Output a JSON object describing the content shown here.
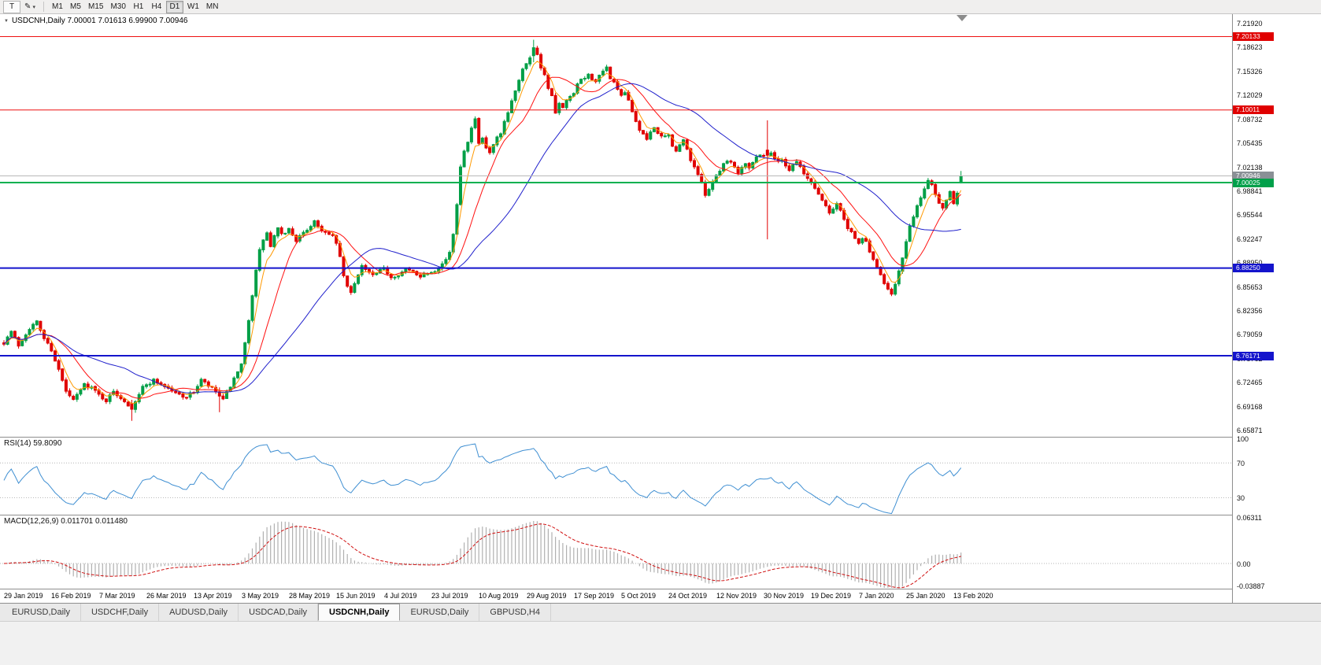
{
  "colors": {
    "up": "#009f46",
    "down": "#e00000",
    "ma_fast": "#ff9900",
    "ma_mid": "#ff1111",
    "ma_slow": "#2020cc",
    "rsi_line": "#3f8fd2",
    "macd_hist": "#b0b0b0",
    "macd_signal": "#d01010",
    "bid_line": "#b8b8b8",
    "level_dotted": "#b4b4b4"
  },
  "toolbar": {
    "t_button": "T",
    "drawing_tool_glyph": "✎",
    "drawing_button_caret": "▾",
    "timeframes": [
      "M1",
      "M5",
      "M15",
      "M30",
      "H1",
      "H4",
      "D1",
      "W1",
      "MN"
    ],
    "active_timeframe": "D1"
  },
  "chart": {
    "symbol": "USDCNH,Daily",
    "title_line": "USDCNH,Daily 7.00001 7.01613 6.99900 7.00946",
    "collapse_glyph": "▼"
  },
  "price_scale": {
    "ticks": [
      "7.21920",
      "7.18623",
      "7.15326",
      "7.12029",
      "7.08732",
      "7.05435",
      "7.02138",
      "6.98841",
      "6.95544",
      "6.92247",
      "6.88950",
      "6.85653",
      "6.82356",
      "6.79059",
      "6.75762",
      "6.72465",
      "6.69168",
      "6.65871"
    ]
  },
  "hlines": [
    {
      "label": "7.20133",
      "price": 7.20133,
      "color": "#ee1111",
      "tag": "#e00000",
      "width": 1
    },
    {
      "label": "7.10011",
      "price": 7.10011,
      "color": "#ee1111",
      "tag": "#e00000",
      "width": 1
    },
    {
      "label": "7.00946",
      "price": 7.00946,
      "color": "#b8b8b8",
      "tag": "#8a9096",
      "width": 1
    },
    {
      "label": "7.00025",
      "price": 7.00025,
      "color": "#00b050",
      "tag": "#00a04a",
      "width": 2
    },
    {
      "label": "6.88250",
      "price": 6.8825,
      "color": "#1414cc",
      "tag": "#1414cc",
      "width": 2
    },
    {
      "label": "6.76171",
      "price": 6.76171,
      "color": "#1414cc",
      "tag": "#1414cc",
      "width": 2
    }
  ],
  "rsi": {
    "display": "RSI(14) 59.8090",
    "levels": [
      70,
      30
    ],
    "scale_labels": [
      {
        "t": "100",
        "v": 100
      },
      {
        "t": "70",
        "v": 70
      },
      {
        "t": "30",
        "v": 30
      }
    ]
  },
  "macd": {
    "display": "MACD(12,26,9) 0.011701 0.011480",
    "scale_labels": [
      {
        "t": "0.06311",
        "v": 0.06311
      },
      {
        "t": "0.00",
        "v": 0
      },
      {
        "t": "-0.03887",
        "v": -0.03887
      }
    ]
  },
  "dates": [
    "29 Jan 2019",
    "16 Feb 2019",
    "7 Mar 2019",
    "26 Mar 2019",
    "13 Apr 2019",
    "3 May 2019",
    "28 May 2019",
    "15 Jun 2019",
    "4 Jul 2019",
    "23 Jul 2019",
    "10 Aug 2019",
    "29 Aug 2019",
    "17 Sep 2019",
    "5 Oct 2019",
    "24 Oct 2019",
    "12 Nov 2019",
    "30 Nov 2019",
    "19 Dec 2019",
    "7 Jan 2020",
    "25 Jan 2020",
    "13 Feb 2020"
  ],
  "tabs": [
    {
      "label": "EURUSD,Daily",
      "active": false
    },
    {
      "label": "USDCHF,Daily",
      "active": false
    },
    {
      "label": "AUDUSD,Daily",
      "active": false
    },
    {
      "label": "USDCAD,Daily",
      "active": false
    },
    {
      "label": "USDCNH,Daily",
      "active": true
    },
    {
      "label": "EURUSD,Daily",
      "active": false
    },
    {
      "label": "GBPUSD,H4",
      "active": false
    }
  ],
  "chart_data": {
    "type": "candlestick",
    "symbol": "USDCNH",
    "timeframe": "Daily",
    "bars": 263,
    "ylim": [
      6.652,
      7.232
    ],
    "x_labels_every_bars": 13,
    "close_anchors": [
      [
        0,
        6.78
      ],
      [
        2,
        6.795
      ],
      [
        4,
        6.776
      ],
      [
        7,
        6.8
      ],
      [
        9,
        6.808
      ],
      [
        11,
        6.786
      ],
      [
        13,
        6.77
      ],
      [
        15,
        6.742
      ],
      [
        17,
        6.712
      ],
      [
        19,
        6.7
      ],
      [
        22,
        6.722
      ],
      [
        24,
        6.718
      ],
      [
        26,
        6.708
      ],
      [
        28,
        6.7
      ],
      [
        30,
        6.712
      ],
      [
        33,
        6.7
      ],
      [
        35,
        6.688
      ],
      [
        36,
        6.7
      ],
      [
        38,
        6.718
      ],
      [
        41,
        6.728
      ],
      [
        44,
        6.72
      ],
      [
        47,
        6.71
      ],
      [
        50,
        6.705
      ],
      [
        52,
        6.712
      ],
      [
        54,
        6.728
      ],
      [
        56,
        6.72
      ],
      [
        58,
        6.712
      ],
      [
        60,
        6.7
      ],
      [
        62,
        6.72
      ],
      [
        64,
        6.738
      ],
      [
        65,
        6.748
      ],
      [
        66,
        6.778
      ],
      [
        67,
        6.812
      ],
      [
        68,
        6.846
      ],
      [
        69,
        6.878
      ],
      [
        70,
        6.906
      ],
      [
        71,
        6.922
      ],
      [
        72,
        6.93
      ],
      [
        73,
        6.912
      ],
      [
        74,
        6.926
      ],
      [
        75,
        6.936
      ],
      [
        76,
        6.928
      ],
      [
        78,
        6.936
      ],
      [
        80,
        6.921
      ],
      [
        82,
        6.93
      ],
      [
        84,
        6.941
      ],
      [
        85,
        6.948
      ],
      [
        86,
        6.94
      ],
      [
        88,
        6.931
      ],
      [
        90,
        6.925
      ],
      [
        91,
        6.918
      ],
      [
        92,
        6.896
      ],
      [
        93,
        6.872
      ],
      [
        94,
        6.856
      ],
      [
        95,
        6.848
      ],
      [
        96,
        6.862
      ],
      [
        97,
        6.875
      ],
      [
        98,
        6.886
      ],
      [
        99,
        6.88
      ],
      [
        101,
        6.872
      ],
      [
        103,
        6.878
      ],
      [
        104,
        6.882
      ],
      [
        106,
        6.87
      ],
      [
        108,
        6.874
      ],
      [
        110,
        6.88
      ],
      [
        112,
        6.877
      ],
      [
        114,
        6.872
      ],
      [
        116,
        6.876
      ],
      [
        118,
        6.88
      ],
      [
        120,
        6.888
      ],
      [
        122,
        6.902
      ],
      [
        123,
        6.93
      ],
      [
        124,
        6.972
      ],
      [
        125,
        7.022
      ],
      [
        126,
        7.046
      ],
      [
        127,
        7.058
      ],
      [
        128,
        7.074
      ],
      [
        129,
        7.088
      ],
      [
        130,
        7.052
      ],
      [
        131,
        7.06
      ],
      [
        132,
        7.048
      ],
      [
        133,
        7.04
      ],
      [
        134,
        7.052
      ],
      [
        135,
        7.061
      ],
      [
        136,
        7.066
      ],
      [
        137,
        7.082
      ],
      [
        138,
        7.096
      ],
      [
        139,
        7.112
      ],
      [
        140,
        7.128
      ],
      [
        141,
        7.142
      ],
      [
        142,
        7.158
      ],
      [
        143,
        7.166
      ],
      [
        144,
        7.172
      ],
      [
        145,
        7.186
      ],
      [
        146,
        7.178
      ],
      [
        147,
        7.16
      ],
      [
        148,
        7.148
      ],
      [
        149,
        7.132
      ],
      [
        150,
        7.118
      ],
      [
        151,
        7.096
      ],
      [
        152,
        7.108
      ],
      [
        153,
        7.102
      ],
      [
        154,
        7.112
      ],
      [
        155,
        7.118
      ],
      [
        156,
        7.122
      ],
      [
        157,
        7.134
      ],
      [
        158,
        7.142
      ],
      [
        160,
        7.148
      ],
      [
        162,
        7.14
      ],
      [
        164,
        7.152
      ],
      [
        165,
        7.158
      ],
      [
        166,
        7.145
      ],
      [
        168,
        7.13
      ],
      [
        169,
        7.118
      ],
      [
        170,
        7.124
      ],
      [
        171,
        7.112
      ],
      [
        172,
        7.098
      ],
      [
        173,
        7.086
      ],
      [
        174,
        7.072
      ],
      [
        175,
        7.065
      ],
      [
        176,
        7.06
      ],
      [
        177,
        7.07
      ],
      [
        178,
        7.078
      ],
      [
        179,
        7.068
      ],
      [
        180,
        7.062
      ],
      [
        182,
        7.065
      ],
      [
        183,
        7.052
      ],
      [
        184,
        7.042
      ],
      [
        185,
        7.052
      ],
      [
        186,
        7.058
      ],
      [
        187,
        7.046
      ],
      [
        188,
        7.032
      ],
      [
        189,
        7.022
      ],
      [
        190,
        7.012
      ],
      [
        191,
        6.998
      ],
      [
        192,
        6.985
      ],
      [
        193,
        6.992
      ],
      [
        194,
        7.002
      ],
      [
        195,
        7.01
      ],
      [
        196,
        7.018
      ],
      [
        197,
        7.026
      ],
      [
        198,
        7.032
      ],
      [
        199,
        7.028
      ],
      [
        200,
        7.022
      ],
      [
        201,
        7.015
      ],
      [
        202,
        7.022
      ],
      [
        203,
        7.028
      ],
      [
        204,
        7.022
      ],
      [
        205,
        7.028
      ],
      [
        206,
        7.035
      ],
      [
        207,
        7.04
      ],
      [
        208,
        7.038
      ],
      [
        210,
        7.042
      ],
      [
        211,
        7.035
      ],
      [
        212,
        7.028
      ],
      [
        213,
        7.032
      ],
      [
        214,
        7.025
      ],
      [
        215,
        7.018
      ],
      [
        216,
        7.025
      ],
      [
        217,
        7.03
      ],
      [
        218,
        7.022
      ],
      [
        219,
        7.012
      ],
      [
        220,
        7.005
      ],
      [
        221,
        7.0
      ],
      [
        222,
        6.992
      ],
      [
        223,
        6.985
      ],
      [
        224,
        6.976
      ],
      [
        225,
        6.968
      ],
      [
        226,
        6.96
      ],
      [
        227,
        6.965
      ],
      [
        228,
        6.972
      ],
      [
        229,
        6.962
      ],
      [
        230,
        6.948
      ],
      [
        231,
        6.938
      ],
      [
        232,
        6.93
      ],
      [
        233,
        6.922
      ],
      [
        234,
        6.915
      ],
      [
        235,
        6.925
      ],
      [
        236,
        6.918
      ],
      [
        237,
        6.905
      ],
      [
        238,
        6.895
      ],
      [
        239,
        6.882
      ],
      [
        240,
        6.872
      ],
      [
        241,
        6.862
      ],
      [
        242,
        6.855
      ],
      [
        243,
        6.848
      ],
      [
        244,
        6.862
      ],
      [
        245,
        6.878
      ],
      [
        246,
        6.895
      ],
      [
        247,
        6.918
      ],
      [
        248,
        6.938
      ],
      [
        249,
        6.955
      ],
      [
        250,
        6.968
      ],
      [
        251,
        6.978
      ],
      [
        252,
        6.992
      ],
      [
        253,
        7.005
      ],
      [
        254,
        6.998
      ],
      [
        255,
        6.985
      ],
      [
        256,
        6.972
      ],
      [
        257,
        6.965
      ],
      [
        258,
        6.978
      ],
      [
        259,
        6.99
      ],
      [
        260,
        6.972
      ],
      [
        261,
        6.988
      ],
      [
        262,
        7.009
      ]
    ],
    "special_candles": [
      {
        "i": 35,
        "o": 6.696,
        "h": 6.701,
        "l": 6.672,
        "c": 6.688
      },
      {
        "i": 59,
        "o": 6.712,
        "h": 6.718,
        "l": 6.684,
        "c": 6.706
      },
      {
        "i": 145,
        "o": 7.175,
        "h": 7.197,
        "l": 7.166,
        "c": 7.186
      },
      {
        "i": 209,
        "o": 7.045,
        "h": 7.086,
        "l": 6.922,
        "c": 7.038
      }
    ],
    "last_candle": {
      "o": 7.00001,
      "h": 7.01613,
      "l": 6.999,
      "c": 7.00946
    },
    "moving_averages": [
      {
        "period": 5,
        "type": "ema",
        "color_key": "ma_fast"
      },
      {
        "period": 13,
        "type": "sma",
        "color_key": "ma_mid"
      },
      {
        "period": 34,
        "type": "sma",
        "color_key": "ma_slow"
      }
    ],
    "indicators": {
      "rsi_period": 14,
      "rsi_value": 59.809,
      "macd_params": [
        12,
        26,
        9
      ],
      "macd_value": 0.011701,
      "macd_signal_value": 0.01148
    }
  }
}
